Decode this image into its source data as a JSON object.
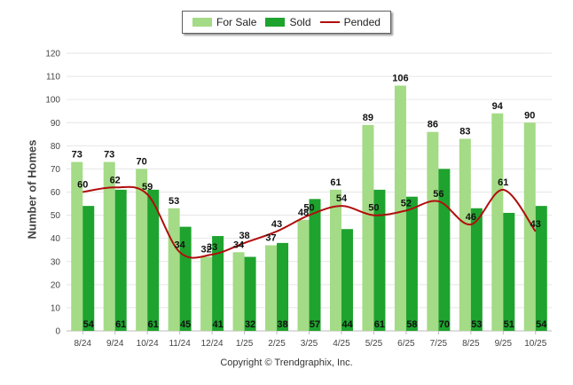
{
  "chart_data": {
    "type": "bar",
    "categories": [
      "8/24",
      "9/24",
      "10/24",
      "11/24",
      "12/24",
      "1/25",
      "2/25",
      "3/25",
      "4/25",
      "5/25",
      "6/25",
      "7/25",
      "8/25",
      "9/25",
      "10/25"
    ],
    "series": [
      {
        "name": "For Sale",
        "kind": "bar",
        "color": "#a4db86",
        "values": [
          73,
          73,
          70,
          53,
          32,
          34,
          37,
          48,
          61,
          89,
          106,
          86,
          83,
          94,
          90
        ]
      },
      {
        "name": "Sold",
        "kind": "bar",
        "color": "#1ea32e",
        "values": [
          54,
          61,
          61,
          45,
          41,
          32,
          38,
          57,
          44,
          61,
          58,
          70,
          53,
          51,
          54
        ]
      },
      {
        "name": "Pended",
        "kind": "line",
        "color": "#b10d0d",
        "values": [
          60,
          62,
          59,
          34,
          33,
          38,
          43,
          50,
          54,
          50,
          52,
          56,
          46,
          61,
          43
        ]
      }
    ],
    "title": "",
    "xlabel": "",
    "ylabel": "Number of Homes",
    "ylim": [
      0,
      120
    ],
    "yticks": [
      0,
      10,
      20,
      30,
      40,
      50,
      60,
      70,
      80,
      90,
      100,
      110,
      120
    ],
    "grid": true,
    "legend_position": "top-center"
  },
  "legend": {
    "for_sale": "For Sale",
    "sold": "Sold",
    "pended": "Pended"
  },
  "footer": "Copyright © Trendgraphix, Inc."
}
